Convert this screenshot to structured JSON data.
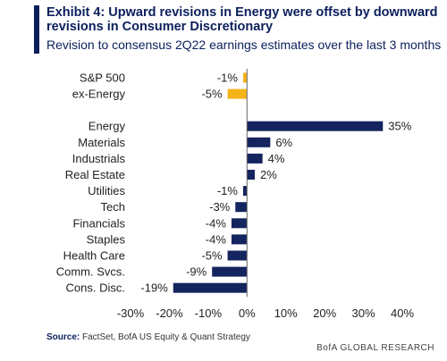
{
  "header": {
    "title": "Exhibit 4: Upward  revisions in Energy were offset by downward revisions in Consumer Discretionary",
    "subtitle": "Revision to consensus 2Q22 earnings estimates over the last 3 months"
  },
  "footer": {
    "source_label": "Source:",
    "source_text": "FactSet, BofA US Equity & Quant Strategy",
    "brand": "BofA GLOBAL RESEARCH"
  },
  "colors": {
    "title": "#0b1f5c",
    "sector_bar": "#14245e",
    "index_bar": "#f5b31a"
  },
  "chart_data": {
    "type": "bar",
    "orientation": "horizontal",
    "categories": [
      "S&P 500",
      "ex-Energy",
      "Energy",
      "Materials",
      "Industrials",
      "Real Estate",
      "Utilities",
      "Tech",
      "Financials",
      "Staples",
      "Health Care",
      "Comm. Svcs.",
      "Cons. Disc."
    ],
    "values": [
      -1,
      -5,
      35,
      6,
      4,
      2,
      -1,
      -3,
      -4,
      -4,
      -5,
      -9,
      -19
    ],
    "data_labels": [
      "-1%",
      "-5%",
      "35%",
      "6%",
      "4%",
      "2%",
      "-1%",
      "-3%",
      "-4%",
      "-4%",
      "-5%",
      "-9%",
      "-19%"
    ],
    "bar_colors": [
      "#f5b31a",
      "#f5b31a",
      "#14245e",
      "#14245e",
      "#14245e",
      "#14245e",
      "#14245e",
      "#14245e",
      "#14245e",
      "#14245e",
      "#14245e",
      "#14245e",
      "#14245e"
    ],
    "group_gap_after_index": 1,
    "xlim": [
      -30,
      40
    ],
    "xticks": [
      -30,
      -20,
      -10,
      0,
      10,
      20,
      30,
      40
    ],
    "xtick_labels": [
      "-30%",
      "-20%",
      "-10%",
      "0%",
      "10%",
      "20%",
      "30%",
      "40%"
    ],
    "xlabel": "",
    "ylabel": "",
    "grid": false,
    "legend": "none"
  }
}
